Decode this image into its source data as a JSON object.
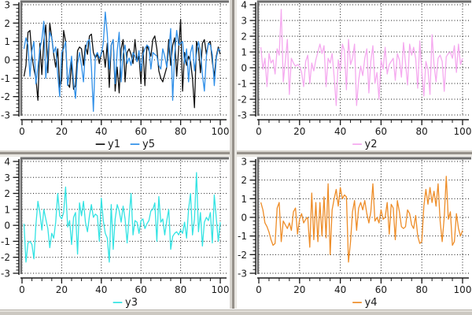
{
  "window": {
    "background": "#ffffff",
    "chrome_gray": "#d4d0c8",
    "frame_color": "#6e6e6e",
    "axis_color": "#1a1a1a",
    "grid_style": "dotted"
  },
  "chart_data": [
    {
      "type": "line",
      "panel": "top-left",
      "title": "",
      "xlabel": "",
      "ylabel": "",
      "xlim": [
        0,
        100
      ],
      "ylim": [
        -3,
        3
      ],
      "xticks": [
        0,
        20,
        40,
        60,
        80,
        100
      ],
      "yticks": [
        -3,
        -2,
        -1,
        0,
        1,
        2,
        3
      ],
      "x_minor_step": 5,
      "y_minor_step": 0.2,
      "grid": "dotted",
      "legend_position": "bottom-center",
      "x_start": 1,
      "x_step": 1,
      "series": [
        {
          "name": "y1",
          "color": "#111111",
          "values": [
            -0.9,
            -0.3,
            1.5,
            1.6,
            0.2,
            -0.5,
            -1.0,
            -2.2,
            0.9,
            -0.8,
            1.0,
            1.9,
            -0.7,
            2.0,
            1.2,
            0.3,
            -0.4,
            0.6,
            -1.5,
            -1.1,
            1.6,
            1.0,
            -1.3,
            -1.5,
            -0.1,
            -1.6,
            -1.4,
            0.5,
            0.7,
            0.6,
            -0.3,
            0.8,
            0.3,
            1.3,
            1.4,
            0.4,
            0.1,
            0.3,
            -0.2,
            0.4,
            0.5,
            -0.4,
            0.9,
            -1.5,
            0.8,
            1.1,
            -1.7,
            -0.4,
            -1.8,
            0.6,
            1.1,
            -1.2,
            0.4,
            0.6,
            0.3,
            -0.2,
            1.1,
            -0.1,
            0.2,
            -1.3,
            0.7,
            -1.4,
            0.8,
            0.5,
            0.2,
            1.1,
            1.3,
            0.6,
            -0.6,
            -1.0,
            -1.2,
            -0.8,
            -0.4,
            1.1,
            -0.3,
            0.8,
            1.2,
            -0.9,
            0.6,
            2.2,
            -1.7,
            0.4,
            -0.3,
            0.2,
            -0.1,
            -1.0,
            -2.6,
            1.0,
            0.6,
            -0.7,
            0.9,
            1.1,
            0.3,
            0.9,
            1.0,
            -0.1,
            -0.9,
            0.2,
            0.7,
            0.3
          ]
        },
        {
          "name": "y5",
          "color": "#2f8fe8",
          "values": [
            0.6,
            1.2,
            0.8,
            -0.9,
            0.5,
            1.0,
            -1.3,
            -0.4,
            0.6,
            1.1,
            2.1,
            -1.0,
            0.3,
            1.5,
            1.2,
            0.4,
            0.7,
            -0.8,
            -2.0,
            0.4,
            0.6,
            1.0,
            -1.4,
            -0.6,
            0.2,
            -1.2,
            -2.1,
            -0.2,
            0.4,
            -0.3,
            -1.2,
            0.5,
            1.0,
            1.1,
            -0.4,
            -2.8,
            0.2,
            0.4,
            0.1,
            0.3,
            0.9,
            2.6,
            1.4,
            -0.5,
            0.8,
            1.1,
            -1.3,
            0.5,
            1.5,
            -1.2,
            0.3,
            0.8,
            -0.2,
            0.1,
            -0.3,
            0.4,
            0.2,
            -0.1,
            0.5,
            -0.6,
            0.3,
            0.6,
            0.8,
            0.7,
            -0.5,
            0.4,
            0.3,
            0.2,
            -0.3,
            -0.5,
            0.6,
            0.2,
            -0.4,
            0.5,
            1.7,
            -2.2,
            0.3,
            1.6,
            0.8,
            0.9,
            1.0,
            -0.2,
            0.6,
            -1.2,
            0.4,
            0.8,
            -0.6,
            0.3,
            1.0,
            0.5,
            -0.8,
            -1.7,
            0.2,
            0.9,
            0.8,
            0.3,
            -1.4,
            0.1,
            0.6,
            0.5
          ]
        }
      ]
    },
    {
      "type": "line",
      "panel": "top-right",
      "title": "",
      "xlabel": "",
      "ylabel": "",
      "xlim": [
        0,
        100
      ],
      "ylim": [
        -3,
        4
      ],
      "xticks": [
        0,
        20,
        40,
        60,
        80,
        100
      ],
      "yticks": [
        -3,
        -2,
        -1,
        0,
        1,
        2,
        3,
        4
      ],
      "x_minor_step": 5,
      "y_minor_step": 0.2,
      "grid": "dotted",
      "legend_position": "bottom-center",
      "x_start": 1,
      "x_step": 1,
      "series": [
        {
          "name": "y2",
          "color": "#f5a9ef",
          "values": [
            1.3,
            -0.1,
            0.6,
            -1.2,
            0.9,
            0.3,
            0.5,
            -0.4,
            1.2,
            0.8,
            3.7,
            -0.9,
            0.4,
            1.8,
            -1.7,
            0.6,
            0.3,
            0.1,
            0.2,
            0.1,
            -0.3,
            -1.2,
            0.4,
            0.8,
            -1.0,
            0.3,
            -0.2,
            0.5,
            1.0,
            1.5,
            0.9,
            1.4,
            -1.2,
            0.6,
            0.3,
            0.9,
            -0.6,
            -2.4,
            0.5,
            -0.2,
            1.5,
            1.1,
            -1.4,
            1.8,
            0.2,
            0.6,
            1.5,
            -2.4,
            -0.8,
            0.1,
            -0.5,
            0.6,
            1.2,
            -1.6,
            0.4,
            1.4,
            -1.0,
            -0.3,
            -2.0,
            0.5,
            -0.1,
            1.3,
            -0.4,
            0.2,
            0.4,
            0.6,
            -0.8,
            0.9,
            0.5,
            -0.6,
            1.6,
            0.3,
            -1.1,
            1.5,
            0.8,
            1.3,
            0.6,
            -1.3,
            1.7,
            -0.2,
            -1.8,
            0.4,
            -0.1,
            -1.7,
            2.1,
            0.2,
            -0.9,
            0.6,
            0.8,
            0.4,
            -1.5,
            0.7,
            0.9,
            1.0,
            0.6,
            1.4,
            -0.3,
            1.5,
            0.2,
            0.6
          ]
        }
      ]
    },
    {
      "type": "line",
      "panel": "bottom-left",
      "title": "",
      "xlabel": "",
      "ylabel": "",
      "xlim": [
        0,
        100
      ],
      "ylim": [
        -3,
        4
      ],
      "xticks": [
        0,
        20,
        40,
        60,
        80,
        100
      ],
      "yticks": [
        -3,
        -2,
        -1,
        0,
        1,
        2,
        3,
        4
      ],
      "x_minor_step": 5,
      "y_minor_step": 0.2,
      "grid": "dotted",
      "legend_position": "bottom-center",
      "x_start": 1,
      "x_step": 1,
      "series": [
        {
          "name": "y3",
          "color": "#33e3e3",
          "values": [
            0.1,
            -2.3,
            -1.1,
            -1.0,
            -1.2,
            -2.1,
            0.0,
            1.5,
            0.8,
            -0.3,
            1.0,
            0.4,
            -0.2,
            -1.4,
            -0.5,
            -0.8,
            0.2,
            2.0,
            0.6,
            0.4,
            0.8,
            2.4,
            -0.1,
            0.3,
            -1.2,
            0.5,
            0.8,
            -1.8,
            1.4,
            0.6,
            1.5,
            0.2,
            -0.4,
            0.6,
            1.3,
            0.5,
            0.7,
            0.6,
            -1.0,
            1.7,
            0.3,
            -0.5,
            -0.8,
            -2.3,
            1.3,
            -1.5,
            0.4,
            1.3,
            0.9,
            0.2,
            1.2,
            0.4,
            -1.1,
            0.5,
            2.0,
            -0.6,
            0.3,
            0.2,
            -0.5,
            0.3,
            0.4,
            -0.2,
            0.1,
            0.3,
            0.9,
            1.0,
            1.4,
            -1.0,
            1.8,
            0.2,
            0.4,
            -0.6,
            0.3,
            1.0,
            -1.5,
            -0.7,
            -0.5,
            -0.4,
            -0.6,
            -0.3,
            -0.5,
            0.2,
            -0.8,
            1.0,
            2.0,
            -0.6,
            0.4,
            3.3,
            -0.4,
            0.8,
            -1.3,
            0.2,
            0.5,
            0.3,
            0.8,
            -1.1,
            1.9,
            0.4,
            -1.0,
            0.2
          ]
        }
      ]
    },
    {
      "type": "line",
      "panel": "bottom-right",
      "title": "",
      "xlabel": "",
      "ylabel": "",
      "xlim": [
        0,
        100
      ],
      "ylim": [
        -3,
        3
      ],
      "xticks": [
        0,
        20,
        40,
        60,
        80,
        100
      ],
      "yticks": [
        -3,
        -2,
        -1,
        0,
        1,
        2,
        3
      ],
      "x_minor_step": 5,
      "y_minor_step": 0.2,
      "grid": "dotted",
      "legend_position": "bottom-center",
      "x_start": 1,
      "x_step": 1,
      "series": [
        {
          "name": "y4",
          "color": "#ee8d28",
          "values": [
            0.8,
            0.4,
            -0.3,
            -0.5,
            -0.8,
            -1.2,
            -1.5,
            -1.4,
            0.5,
            0.8,
            -1.3,
            -0.2,
            -0.4,
            -0.6,
            -0.3,
            -0.7,
            0.3,
            0.5,
            -0.9,
            -0.1,
            0.2,
            -0.3,
            -0.1,
            0.0,
            -1.6,
            1.3,
            -1.2,
            0.8,
            -1.3,
            0.8,
            -1.0,
            1.1,
            -1.1,
            1.8,
            -2.0,
            0.4,
            1.0,
            1.5,
            0.6,
            1.6,
            1.0,
            1.2,
            1.1,
            -2.4,
            -1.3,
            0.3,
            0.9,
            -0.7,
            0.5,
            0.8,
            0.4,
            0.9,
            0.2,
            -0.3,
            0.3,
            1.8,
            -0.2,
            0.0,
            -0.3,
            0.4,
            -0.1,
            0.0,
            0.8,
            -0.9,
            0.7,
            0.5,
            -1.2,
            0.9,
            0.3,
            -0.5,
            -0.6,
            -0.5,
            0.4,
            0.2,
            -0.4,
            -0.6,
            0.1,
            -1.0,
            -1.4,
            -1.3,
            0.6,
            1.5,
            0.7,
            1.6,
            0.8,
            1.4,
            0.6,
            1.8,
            -0.2,
            -1.3,
            0.0,
            2.2,
            -0.1,
            0.3,
            -1.5,
            -1.3,
            0.2,
            -0.6,
            -1.0,
            -0.7
          ]
        }
      ]
    }
  ]
}
